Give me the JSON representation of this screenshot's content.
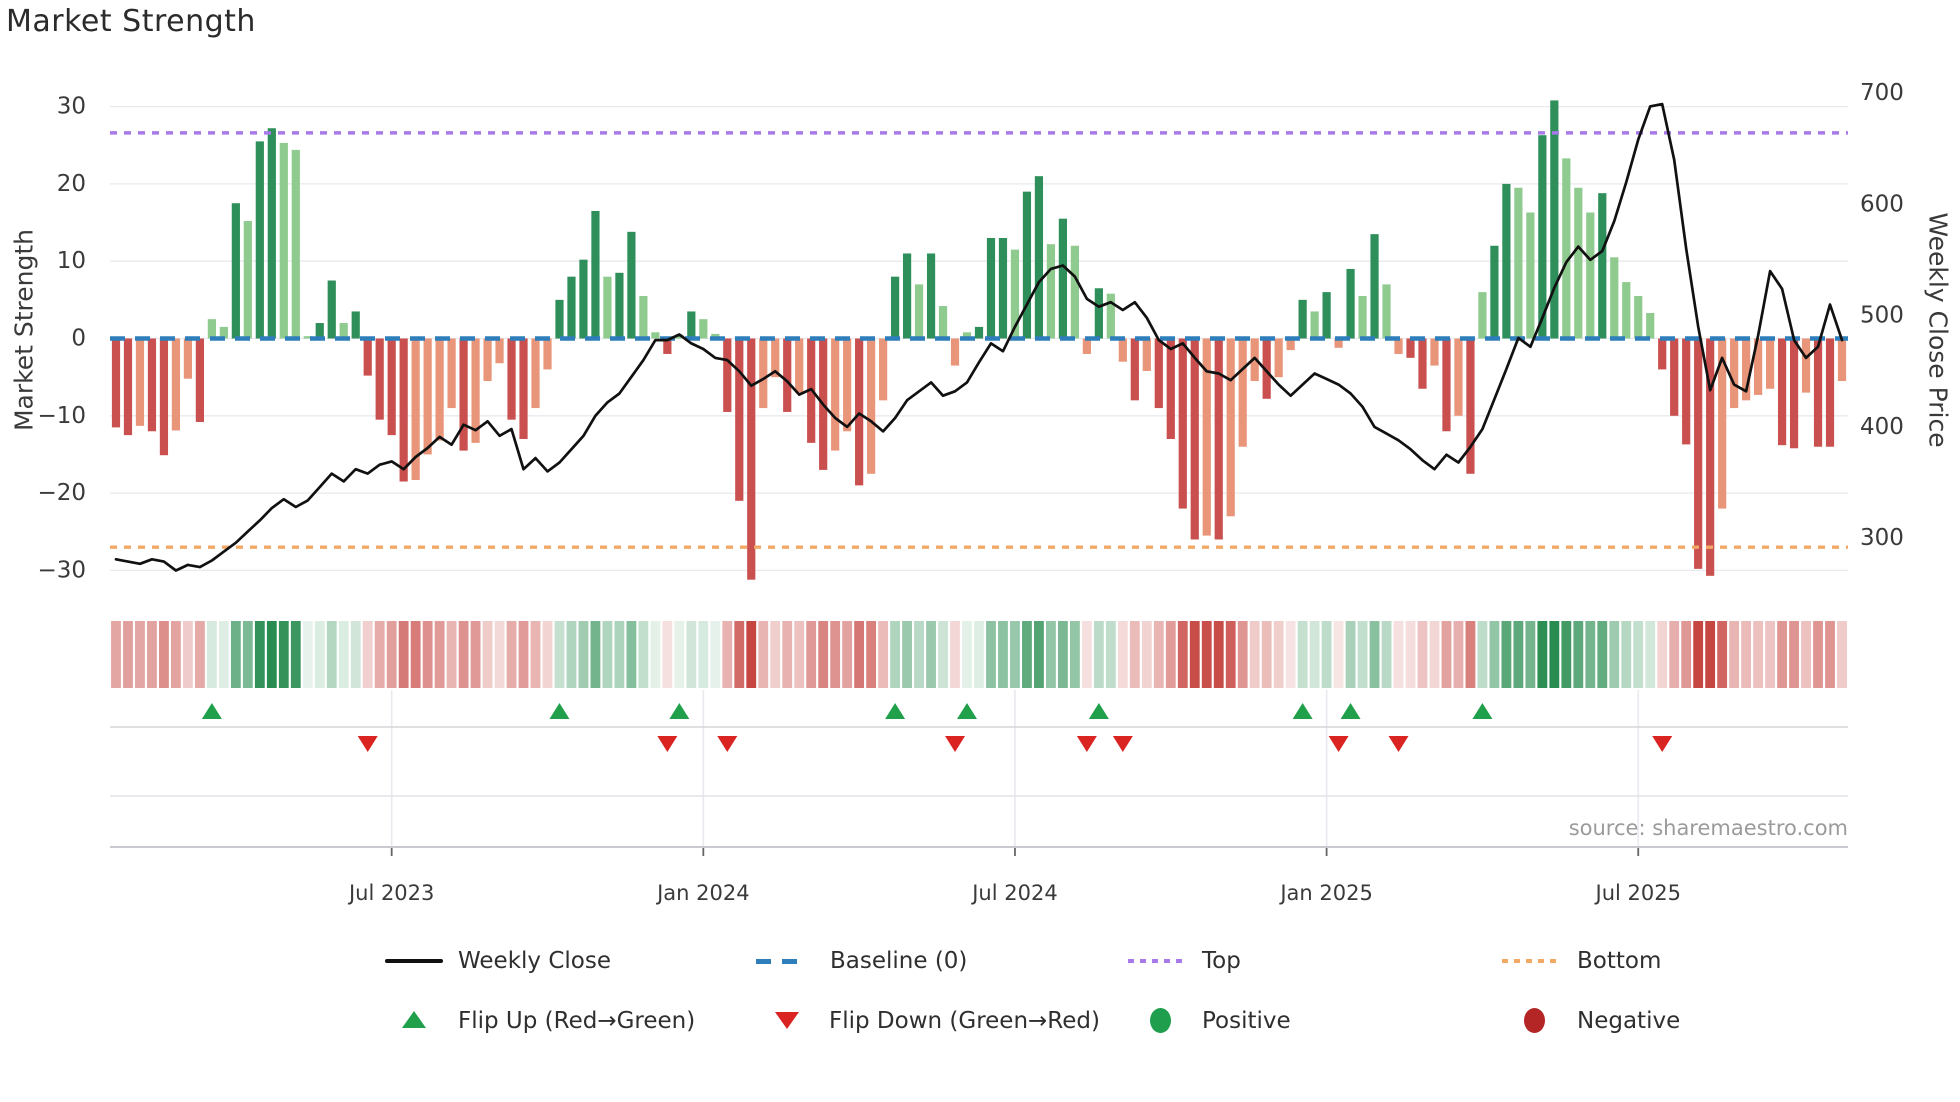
{
  "title": "Market Strength",
  "source_note": "source: sharemaestro.com",
  "legend": {
    "weekly_close": "Weekly Close",
    "baseline": "Baseline (0)",
    "top": "Top",
    "bottom": "Bottom",
    "flip_up": "Flip Up (Red→Green)",
    "flip_down": "Flip Down (Green→Red)",
    "positive": "Positive",
    "negative": "Negative"
  },
  "colors": {
    "bar_pos_strong": "#2e8f5b",
    "bar_pos_weak": "#8fca8f",
    "bar_neg_strong": "#c9504e",
    "bar_neg_weak": "#e99579",
    "price_line": "#111111",
    "baseline": "#2e7ebb",
    "top_line": "#a879e8",
    "bottom_line": "#f2a965",
    "flip_up": "#21a04c",
    "flip_down": "#da2422",
    "positive_dot": "#1f9e4d",
    "negative_dot": "#b42525",
    "heat_pos": "40,140,80",
    "heat_neg": "198,70,65",
    "grid": "#e9e9ef",
    "axis_line": "#c9c9d0",
    "tick_text": "#3a3a3a"
  },
  "chart_data": {
    "type": "combo-bar-line",
    "frequency": "weekly",
    "start_date": "2023-01-30",
    "n_weeks": 145,
    "title": "Market Strength",
    "left_axis": {
      "label": "Market Strength",
      "ticks": [
        30,
        20,
        10,
        0,
        -10,
        -20,
        -30
      ],
      "range": [
        -33,
        33
      ]
    },
    "right_axis": {
      "label": "Weekly Close Price",
      "ticks": [
        700,
        600,
        500,
        400,
        300
      ],
      "range": [
        258,
        712
      ]
    },
    "x_ticks": [
      {
        "label": "Jul 2023",
        "week": 23
      },
      {
        "label": "Jan 2024",
        "week": 49
      },
      {
        "label": "Jul 2024",
        "week": 75
      },
      {
        "label": "Jan 2025",
        "week": 101
      },
      {
        "label": "Jul 2025",
        "week": 127
      }
    ],
    "baseline": 0,
    "top_threshold": 26.6,
    "bottom_threshold": -27,
    "strength": [
      -11.5,
      -12.5,
      -11.3,
      -12.0,
      -15.1,
      -11.9,
      -5.2,
      -10.8,
      2.5,
      1.5,
      17.5,
      15.2,
      25.5,
      27.2,
      25.3,
      24.4,
      0.3,
      2.0,
      7.5,
      2.0,
      3.5,
      -4.8,
      -10.5,
      -12.5,
      -18.5,
      -18.3,
      -15.0,
      -13.2,
      -9.0,
      -14.5,
      -13.5,
      -5.5,
      -3.2,
      -10.5,
      -13.0,
      -9.0,
      -4.0,
      5.0,
      8.0,
      10.2,
      16.5,
      8.0,
      8.5,
      13.8,
      5.5,
      0.8,
      -2.0,
      0.5,
      3.5,
      2.5,
      0.6,
      -9.5,
      -21.0,
      -31.2,
      -9.0,
      -5.0,
      -9.5,
      -7.0,
      -13.5,
      -17.0,
      -14.5,
      -12.0,
      -19.0,
      -17.5,
      -8.0,
      8.0,
      11.0,
      7.0,
      11.0,
      4.2,
      -3.5,
      0.8,
      1.5,
      13.0,
      13.0,
      11.5,
      19.0,
      21.0,
      12.2,
      15.5,
      12.0,
      -2.0,
      6.5,
      5.8,
      -3.0,
      -8.0,
      -4.2,
      -9.0,
      -13.0,
      -22.0,
      -26.0,
      -25.5,
      -26.0,
      -23.0,
      -14.0,
      -5.5,
      -7.8,
      -5.0,
      -1.5,
      5.0,
      3.5,
      6.0,
      -1.2,
      9.0,
      5.5,
      13.5,
      7.0,
      -2.0,
      -2.5,
      -6.5,
      -3.5,
      -12.0,
      -10.0,
      -17.5,
      6.0,
      12.0,
      20.0,
      19.5,
      16.3,
      26.3,
      30.8,
      23.3,
      19.5,
      16.3,
      18.8,
      10.5,
      7.3,
      5.5,
      3.3,
      -4.0,
      -10.0,
      -13.7,
      -29.8,
      -30.7,
      -22.0,
      -9.0,
      -8.0,
      -7.3,
      -6.5,
      -13.8,
      -14.2,
      -7.0,
      -14.0,
      -14.0,
      -5.5
    ],
    "weekly_close": [
      281,
      279,
      277,
      281,
      279,
      271,
      276,
      274,
      280,
      288,
      296,
      306,
      316,
      327,
      335,
      328,
      334,
      346,
      358,
      351,
      362,
      358,
      366,
      369,
      362,
      373,
      381,
      391,
      384,
      402,
      397,
      405,
      392,
      398,
      362,
      372,
      360,
      368,
      380,
      392,
      410,
      422,
      430,
      445,
      460,
      478,
      478,
      483,
      475,
      470,
      462,
      460,
      450,
      437,
      443,
      450,
      441,
      429,
      434,
      420,
      408,
      400,
      412,
      405,
      396,
      408,
      424,
      432,
      440,
      428,
      432,
      440,
      458,
      475,
      468,
      490,
      510,
      530,
      542,
      545,
      535,
      515,
      508,
      512,
      505,
      512,
      498,
      478,
      470,
      475,
      462,
      450,
      448,
      442,
      452,
      462,
      450,
      438,
      428,
      438,
      448,
      443,
      438,
      430,
      418,
      400,
      394,
      388,
      380,
      370,
      362,
      375,
      368,
      382,
      398,
      425,
      452,
      480,
      472,
      498,
      525,
      548,
      562,
      550,
      558,
      585,
      620,
      658,
      688,
      690,
      640,
      560,
      490,
      433,
      462,
      438,
      432,
      482,
      540,
      524,
      478,
      462,
      472,
      510,
      478
    ],
    "flip_up_weeks": [
      8,
      37,
      47,
      65,
      71,
      82,
      99,
      103,
      114
    ],
    "flip_down_weeks": [
      21,
      46,
      51,
      70,
      81,
      84,
      102,
      107,
      129
    ]
  }
}
